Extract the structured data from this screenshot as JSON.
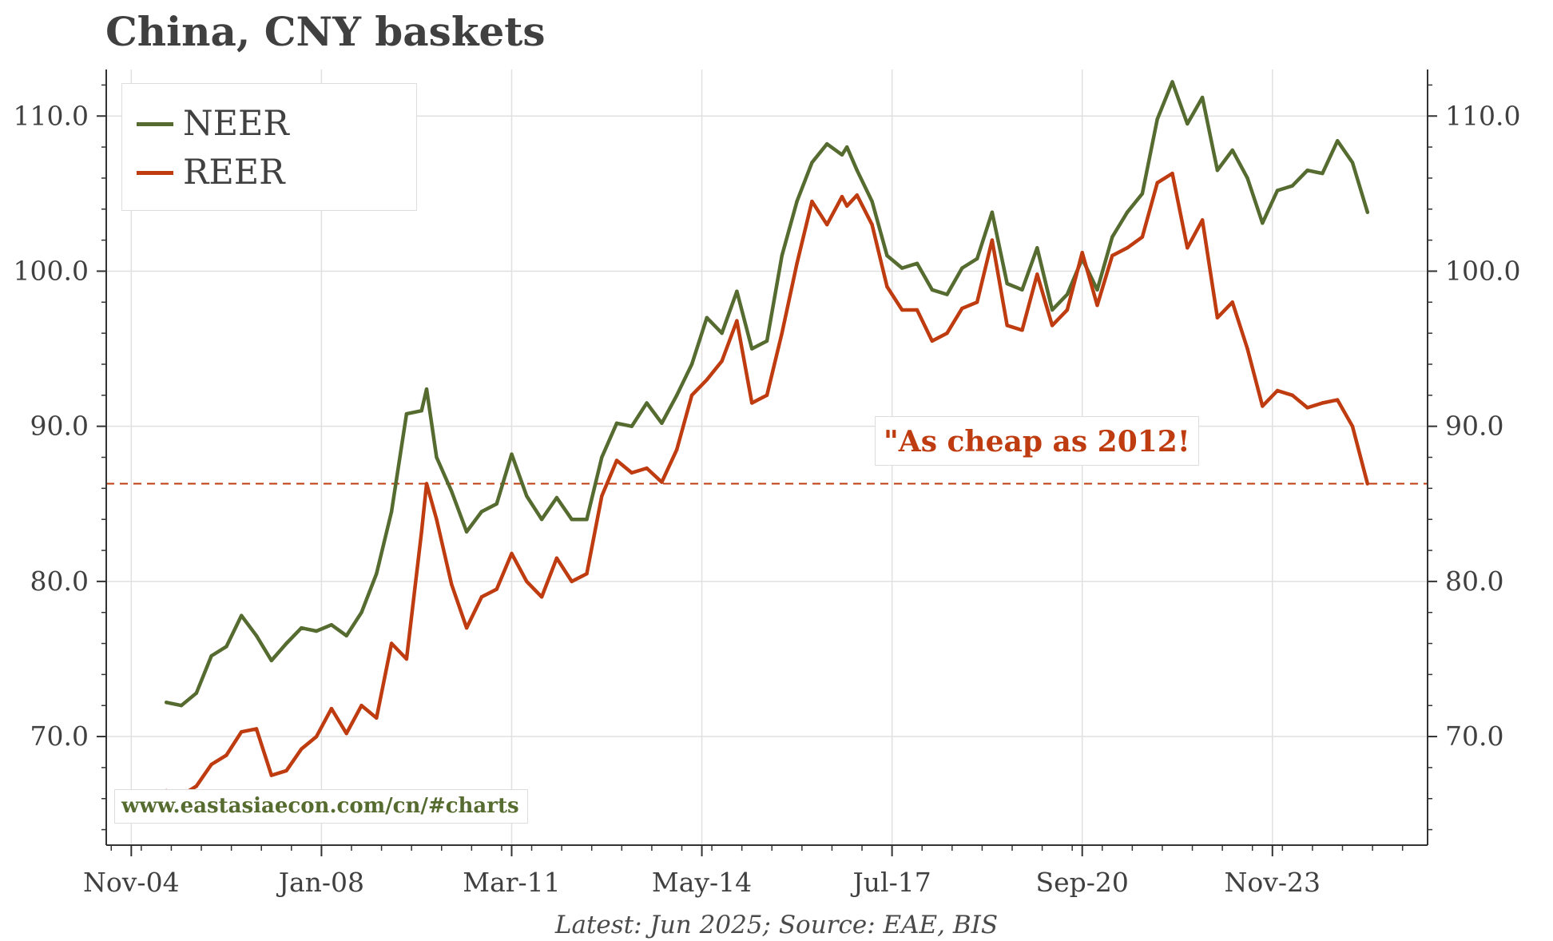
{
  "title": "China, CNY baskets",
  "source_note": "Latest: Jun 2025; Source: EAE, BIS",
  "annotation": "\"As cheap as 2012!",
  "watermark": "www.eastasiaecon.com/cn/#charts",
  "colors": {
    "neer": "#556b2f",
    "reer": "#bf3b10",
    "grid": "#e0e0e0",
    "axis": "#333333",
    "text": "#404040"
  },
  "chart_data": {
    "type": "line",
    "title": "China, CNY baskets",
    "x_axis": {
      "type": "time",
      "range": [
        "2004-06",
        "2026-06"
      ],
      "ticks": [
        {
          "date": "2004-11",
          "label": "Nov-04"
        },
        {
          "date": "2008-01",
          "label": "Jan-08"
        },
        {
          "date": "2011-03",
          "label": "Mar-11"
        },
        {
          "date": "2014-05",
          "label": "May-14"
        },
        {
          "date": "2017-07",
          "label": "Jul-17"
        },
        {
          "date": "2020-09",
          "label": "Sep-20"
        },
        {
          "date": "2023-11",
          "label": "Nov-23"
        }
      ]
    },
    "y_axis": {
      "range": [
        63,
        113
      ],
      "ticks": [
        "70.0",
        "80.0",
        "90.0",
        "100.0",
        "110.0"
      ],
      "secondary_ticks": [
        "70.0",
        "80.0",
        "90.0",
        "100.0",
        "110.0"
      ]
    },
    "grid": true,
    "legend": {
      "position": "top-left",
      "entries": [
        "NEER",
        "REER"
      ]
    },
    "reference_line": {
      "y": 86.3,
      "style": "dashed",
      "color": "#bf3b10"
    },
    "series": [
      {
        "name": "NEER",
        "color": "#556b2f",
        "points": [
          [
            "2005-06",
            72.2
          ],
          [
            "2005-09",
            72.0
          ],
          [
            "2005-12",
            72.8
          ],
          [
            "2006-03",
            75.2
          ],
          [
            "2006-06",
            75.8
          ],
          [
            "2006-09",
            77.8
          ],
          [
            "2006-12",
            76.5
          ],
          [
            "2007-03",
            74.9
          ],
          [
            "2007-06",
            76.0
          ],
          [
            "2007-09",
            77.0
          ],
          [
            "2007-12",
            76.8
          ],
          [
            "2008-03",
            77.2
          ],
          [
            "2008-06",
            76.5
          ],
          [
            "2008-09",
            78.0
          ],
          [
            "2008-12",
            80.5
          ],
          [
            "2009-03",
            84.5
          ],
          [
            "2009-06",
            90.8
          ],
          [
            "2009-09",
            91.0
          ],
          [
            "2009-10",
            92.4
          ],
          [
            "2009-12",
            88.0
          ],
          [
            "2010-03",
            85.8
          ],
          [
            "2010-06",
            83.2
          ],
          [
            "2010-09",
            84.5
          ],
          [
            "2010-12",
            85.0
          ],
          [
            "2011-03",
            88.2
          ],
          [
            "2011-06",
            85.5
          ],
          [
            "2011-09",
            84.0
          ],
          [
            "2011-12",
            85.4
          ],
          [
            "2012-03",
            84.0
          ],
          [
            "2012-06",
            84.0
          ],
          [
            "2012-09",
            88.0
          ],
          [
            "2012-12",
            90.2
          ],
          [
            "2013-03",
            90.0
          ],
          [
            "2013-06",
            91.5
          ],
          [
            "2013-09",
            90.2
          ],
          [
            "2013-12",
            92.0
          ],
          [
            "2014-03",
            94.0
          ],
          [
            "2014-06",
            97.0
          ],
          [
            "2014-09",
            96.0
          ],
          [
            "2014-12",
            98.7
          ],
          [
            "2015-03",
            95.0
          ],
          [
            "2015-06",
            95.5
          ],
          [
            "2015-09",
            101.0
          ],
          [
            "2015-12",
            104.5
          ],
          [
            "2016-03",
            107.0
          ],
          [
            "2016-06",
            108.2
          ],
          [
            "2016-09",
            107.5
          ],
          [
            "2016-10",
            108.0
          ],
          [
            "2016-12",
            106.5
          ],
          [
            "2017-03",
            104.5
          ],
          [
            "2017-06",
            101.0
          ],
          [
            "2017-09",
            100.2
          ],
          [
            "2017-12",
            100.5
          ],
          [
            "2018-03",
            98.8
          ],
          [
            "2018-06",
            98.5
          ],
          [
            "2018-09",
            100.2
          ],
          [
            "2018-12",
            100.8
          ],
          [
            "2019-03",
            103.8
          ],
          [
            "2019-06",
            99.2
          ],
          [
            "2019-09",
            98.8
          ],
          [
            "2019-12",
            101.5
          ],
          [
            "2020-03",
            97.5
          ],
          [
            "2020-06",
            98.5
          ],
          [
            "2020-09",
            100.8
          ],
          [
            "2020-12",
            98.8
          ],
          [
            "2021-03",
            102.2
          ],
          [
            "2021-06",
            103.8
          ],
          [
            "2021-09",
            105.0
          ],
          [
            "2021-12",
            109.8
          ],
          [
            "2022-03",
            112.2
          ],
          [
            "2022-06",
            109.5
          ],
          [
            "2022-09",
            111.2
          ],
          [
            "2022-12",
            106.5
          ],
          [
            "2023-03",
            107.8
          ],
          [
            "2023-06",
            106.0
          ],
          [
            "2023-09",
            103.1
          ],
          [
            "2023-12",
            105.2
          ],
          [
            "2024-03",
            105.5
          ],
          [
            "2024-06",
            106.5
          ],
          [
            "2024-09",
            106.3
          ],
          [
            "2024-12",
            108.4
          ],
          [
            "2025-03",
            107.0
          ],
          [
            "2025-06",
            103.8
          ]
        ]
      },
      {
        "name": "REER",
        "color": "#bf3b10",
        "points": [
          [
            "2005-06",
            66.5
          ],
          [
            "2005-09",
            66.2
          ],
          [
            "2005-12",
            66.8
          ],
          [
            "2006-03",
            68.2
          ],
          [
            "2006-06",
            68.8
          ],
          [
            "2006-09",
            70.3
          ],
          [
            "2006-12",
            70.5
          ],
          [
            "2007-03",
            67.5
          ],
          [
            "2007-06",
            67.8
          ],
          [
            "2007-09",
            69.2
          ],
          [
            "2007-12",
            70.0
          ],
          [
            "2008-03",
            71.8
          ],
          [
            "2008-06",
            70.2
          ],
          [
            "2008-09",
            72.0
          ],
          [
            "2008-12",
            71.2
          ],
          [
            "2009-03",
            76.0
          ],
          [
            "2009-06",
            75.0
          ],
          [
            "2009-09",
            83.2
          ],
          [
            "2009-10",
            86.3
          ],
          [
            "2009-12",
            84.0
          ],
          [
            "2010-03",
            79.8
          ],
          [
            "2010-06",
            77.0
          ],
          [
            "2010-09",
            79.0
          ],
          [
            "2010-12",
            79.5
          ],
          [
            "2011-03",
            81.8
          ],
          [
            "2011-06",
            80.0
          ],
          [
            "2011-09",
            79.0
          ],
          [
            "2011-12",
            81.5
          ],
          [
            "2012-03",
            80.0
          ],
          [
            "2012-06",
            80.5
          ],
          [
            "2012-09",
            85.5
          ],
          [
            "2012-12",
            87.8
          ],
          [
            "2013-03",
            87.0
          ],
          [
            "2013-06",
            87.3
          ],
          [
            "2013-09",
            86.4
          ],
          [
            "2013-12",
            88.5
          ],
          [
            "2014-03",
            92.0
          ],
          [
            "2014-06",
            93.0
          ],
          [
            "2014-09",
            94.2
          ],
          [
            "2014-12",
            96.8
          ],
          [
            "2015-03",
            91.5
          ],
          [
            "2015-06",
            92.0
          ],
          [
            "2015-09",
            96.0
          ],
          [
            "2015-12",
            100.5
          ],
          [
            "2016-03",
            104.5
          ],
          [
            "2016-06",
            103.0
          ],
          [
            "2016-09",
            104.8
          ],
          [
            "2016-10",
            104.2
          ],
          [
            "2016-12",
            104.9
          ],
          [
            "2017-03",
            103.0
          ],
          [
            "2017-06",
            99.0
          ],
          [
            "2017-09",
            97.5
          ],
          [
            "2017-12",
            97.5
          ],
          [
            "2018-03",
            95.5
          ],
          [
            "2018-06",
            96.0
          ],
          [
            "2018-09",
            97.6
          ],
          [
            "2018-12",
            98.0
          ],
          [
            "2019-03",
            102.0
          ],
          [
            "2019-06",
            96.5
          ],
          [
            "2019-09",
            96.2
          ],
          [
            "2019-12",
            99.8
          ],
          [
            "2020-03",
            96.5
          ],
          [
            "2020-06",
            97.5
          ],
          [
            "2020-09",
            101.2
          ],
          [
            "2020-12",
            97.8
          ],
          [
            "2021-03",
            101.0
          ],
          [
            "2021-06",
            101.5
          ],
          [
            "2021-09",
            102.2
          ],
          [
            "2021-12",
            105.7
          ],
          [
            "2022-03",
            106.3
          ],
          [
            "2022-06",
            101.5
          ],
          [
            "2022-09",
            103.3
          ],
          [
            "2022-12",
            97.0
          ],
          [
            "2023-03",
            98.0
          ],
          [
            "2023-06",
            95.0
          ],
          [
            "2023-09",
            91.3
          ],
          [
            "2023-12",
            92.3
          ],
          [
            "2024-03",
            92.0
          ],
          [
            "2024-06",
            91.2
          ],
          [
            "2024-09",
            91.5
          ],
          [
            "2024-12",
            91.7
          ],
          [
            "2025-03",
            90.0
          ],
          [
            "2025-06",
            86.3
          ]
        ]
      }
    ]
  }
}
